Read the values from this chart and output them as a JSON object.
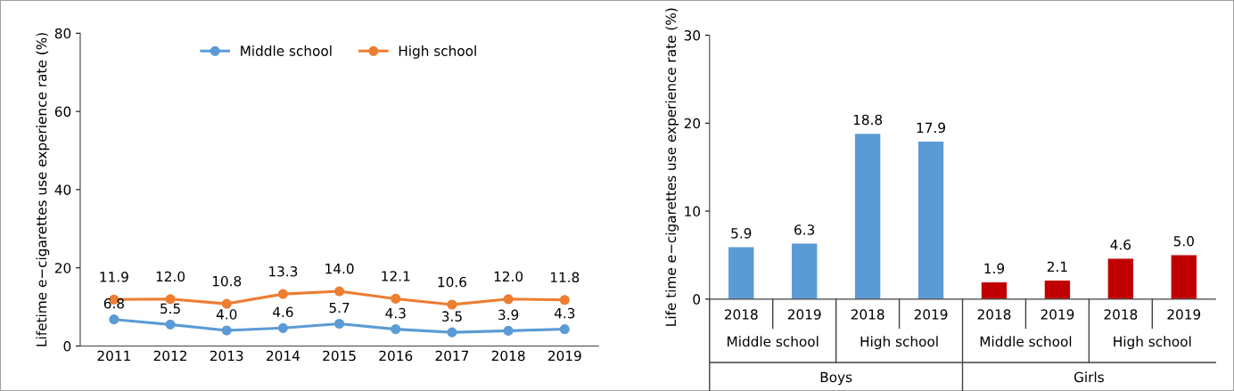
{
  "chart_data": [
    {
      "type": "line",
      "ylabel": "Lifetime e−cigarettes use experience rate (%)",
      "categories": [
        "2011",
        "2012",
        "2013",
        "2014",
        "2015",
        "2016",
        "2017",
        "2018",
        "2019"
      ],
      "series": [
        {
          "name": "Middle school",
          "color": "#5b9bd5",
          "values": [
            6.8,
            5.5,
            4.0,
            4.6,
            5.7,
            4.3,
            3.5,
            3.9,
            4.3
          ],
          "value_labels": [
            "6.8",
            "5.5",
            "4.0",
            "4.6",
            "5.7",
            "4.3",
            "3.5",
            "3.9",
            "4.3"
          ]
        },
        {
          "name": "High school",
          "color": "#ed7d31",
          "values": [
            11.9,
            12.0,
            10.8,
            13.3,
            14.0,
            12.1,
            10.6,
            12.0,
            11.8
          ],
          "value_labels": [
            "11.9",
            "12.0",
            "10.8",
            "13.3",
            "14.0",
            "12.1",
            "10.6",
            "12.0",
            "11.8"
          ]
        }
      ],
      "ylim": [
        0,
        80
      ],
      "yticks": [
        0,
        20,
        40,
        60,
        80
      ],
      "grid": false,
      "legend": "top",
      "marker": "circle",
      "line_style": "solid"
    },
    {
      "type": "bar",
      "ylabel": "Life time e−cigarettes use experience rate (%)",
      "categories": [
        "2018",
        "2019",
        "2018",
        "2019",
        "2018",
        "2019",
        "2018",
        "2019"
      ],
      "values": [
        5.9,
        6.3,
        18.8,
        17.9,
        1.9,
        2.1,
        4.6,
        5.0
      ],
      "value_labels": [
        "5.9",
        "6.3",
        "18.8",
        "17.9",
        "1.9",
        "2.1",
        "4.6",
        "5.0"
      ],
      "colors": [
        "#5b9bd5",
        "#5b9bd5",
        "#5b9bd5",
        "#5b9bd5",
        "#c00000",
        "#c00000",
        "#c00000",
        "#c00000"
      ],
      "annotations": [
        "Middle school",
        "High school",
        "Middle school",
        "High school",
        "Boys",
        "Girls"
      ],
      "ylim": [
        0,
        30
      ],
      "yticks": [
        0,
        10,
        20,
        30
      ],
      "grid": false
    }
  ]
}
